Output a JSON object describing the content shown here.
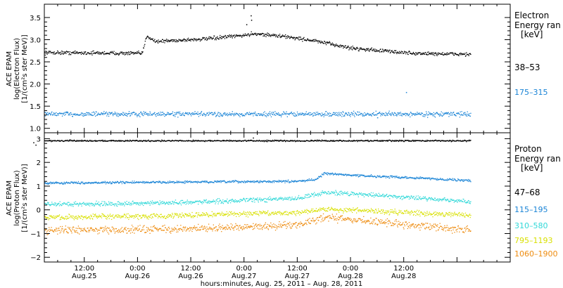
{
  "chart_data": [
    {
      "type": "scatter",
      "panel": "electron",
      "ylabel": [
        "ACE EPAM",
        "log(Electron Flux)",
        "[1/(cm²s ster MeV)]"
      ],
      "ylim": [
        0.9,
        3.8
      ],
      "yticks": [
        1.0,
        1.5,
        2.0,
        2.5,
        3.0,
        3.5
      ],
      "ytick_labels": [
        "1.0",
        "1.5",
        "2.0",
        "2.5",
        "3.0",
        "3.5"
      ],
      "legend_title": [
        "Electron",
        "Energy ran",
        "[keV]"
      ],
      "legend_placement": "right",
      "series": [
        {
          "name": "38–53",
          "color": "#000000",
          "profile": [
            [
              3.0,
              2.72
            ],
            [
              25.0,
              2.7
            ],
            [
              26.0,
              3.1
            ],
            [
              28.0,
              2.97
            ],
            [
              40.0,
              3.03
            ],
            [
              44.0,
              3.07
            ],
            [
              49.0,
              3.12
            ],
            [
              50.0,
              3.15
            ],
            [
              58.0,
              3.07
            ],
            [
              64.0,
              2.98
            ],
            [
              72.0,
              2.82
            ],
            [
              86.0,
              2.7
            ],
            [
              99.0,
              2.68
            ]
          ],
          "noise": 0.035,
          "outliers": [
            [
              49.5,
              3.55
            ],
            [
              49.6,
              3.45
            ],
            [
              48.5,
              3.35
            ]
          ]
        },
        {
          "name": "175–315",
          "color": "#1a84d6",
          "profile": [
            [
              3.0,
              1.33
            ],
            [
              99.0,
              1.33
            ]
          ],
          "noise": 0.045,
          "outliers": [
            [
              84.5,
              1.82
            ],
            [
              78.0,
              1.25
            ]
          ]
        }
      ]
    },
    {
      "type": "scatter",
      "panel": "proton",
      "ylabel": [
        "ACE EPAM",
        "log(Proton Flux)",
        "[1/(cm²s ster MeV)]"
      ],
      "ylim": [
        -2.2,
        3.25
      ],
      "yticks": [
        -2,
        -1,
        0,
        1,
        2,
        3
      ],
      "ytick_labels": [
        "−2",
        "−1",
        "0",
        "1",
        "2",
        "3"
      ],
      "legend_title": [
        "Proton",
        "Energy ran",
        "[keV]"
      ],
      "legend_placement": "right",
      "series": [
        {
          "name": "47–68",
          "color": "#000000",
          "profile": [
            [
              3.0,
              2.93
            ],
            [
              99.0,
              2.93
            ]
          ],
          "noise": 0.025,
          "outliers": [
            [
              0.5,
              2.85
            ],
            [
              1.0,
              2.75
            ],
            [
              50.0,
              3.05
            ]
          ]
        },
        {
          "name": "115–195",
          "color": "#1a84d6",
          "profile": [
            [
              3.0,
              1.15
            ],
            [
              60.0,
              1.22
            ],
            [
              64.0,
              1.3
            ],
            [
              66.0,
              1.55
            ],
            [
              75.0,
              1.45
            ],
            [
              85.0,
              1.38
            ],
            [
              99.0,
              1.25
            ]
          ],
          "noise": 0.04,
          "outliers": []
        },
        {
          "name": "310–580",
          "color": "#30d8d8",
          "profile": [
            [
              3.0,
              0.25
            ],
            [
              30.0,
              0.3
            ],
            [
              45.0,
              0.4
            ],
            [
              60.0,
              0.5
            ],
            [
              66.0,
              0.75
            ],
            [
              72.0,
              0.7
            ],
            [
              85.0,
              0.55
            ],
            [
              99.0,
              0.35
            ]
          ],
          "noise": 0.08,
          "outliers": []
        },
        {
          "name": "795–1193",
          "color": "#d8e000",
          "profile": [
            [
              3.0,
              -0.3
            ],
            [
              30.0,
              -0.25
            ],
            [
              45.0,
              -0.15
            ],
            [
              60.0,
              -0.1
            ],
            [
              66.0,
              0.05
            ],
            [
              72.0,
              0.0
            ],
            [
              85.0,
              -0.1
            ],
            [
              99.0,
              -0.2
            ]
          ],
          "noise": 0.09,
          "outliers": []
        },
        {
          "name": "1060–1900",
          "color": "#ee8c10",
          "profile": [
            [
              3.0,
              -0.85
            ],
            [
              30.0,
              -0.8
            ],
            [
              45.0,
              -0.75
            ],
            [
              60.0,
              -0.6
            ],
            [
              66.0,
              -0.3
            ],
            [
              72.0,
              -0.4
            ],
            [
              85.0,
              -0.6
            ],
            [
              99.0,
              -0.85
            ]
          ],
          "noise": 0.13,
          "outliers": []
        }
      ]
    }
  ],
  "x_axis": {
    "unit": "hours since Aug. 25, 2011 00:00",
    "xlim": [
      3.0,
      108.0
    ],
    "ticks": [
      {
        "hour": 12,
        "time": "12:00",
        "date": "Aug.25"
      },
      {
        "hour": 24,
        "time": "0:00",
        "date": "Aug.26"
      },
      {
        "hour": 36,
        "time": "12:00",
        "date": "Aug.26"
      },
      {
        "hour": 48,
        "time": "0:00",
        "date": "Aug.27"
      },
      {
        "hour": 60,
        "time": "12:00",
        "date": "Aug.27"
      },
      {
        "hour": 72,
        "time": "0:00",
        "date": "Aug.28"
      },
      {
        "hour": 84,
        "time": "12:00",
        "date": "Aug.28"
      }
    ],
    "xlabel": "hours:minutes, Aug. 25, 2011 – Aug. 28, 2011"
  },
  "colors": {
    "axes": "#000000",
    "background": "#ffffff"
  }
}
